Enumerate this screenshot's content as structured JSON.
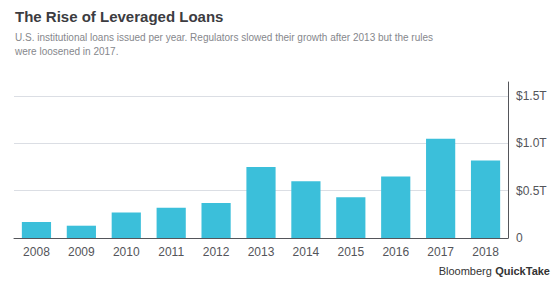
{
  "chart_data": {
    "type": "bar",
    "title": "The Rise of Leveraged Loans",
    "subtitle": "U.S. institutional loans issued per year. Regulators slowed their growth after 2013 but the rules\nwere loosened in 2017.",
    "categories": [
      "2008",
      "2009",
      "2010",
      "2011",
      "2012",
      "2013",
      "2014",
      "2015",
      "2016",
      "2017",
      "2018"
    ],
    "values": [
      0.17,
      0.13,
      0.27,
      0.32,
      0.37,
      0.75,
      0.6,
      0.43,
      0.65,
      1.05,
      0.82
    ],
    "color": "#3bbfda",
    "ylim": [
      0,
      1.65
    ],
    "yticks": [
      0,
      {
        "value": 0.5,
        "label": "$0.5T"
      },
      {
        "value": 1.0,
        "label": "$1.0T"
      },
      {
        "value": 1.5,
        "label": "$1.5T"
      }
    ],
    "grid": true,
    "annotations": [
      "Bloomberg",
      "QuickTake"
    ]
  }
}
